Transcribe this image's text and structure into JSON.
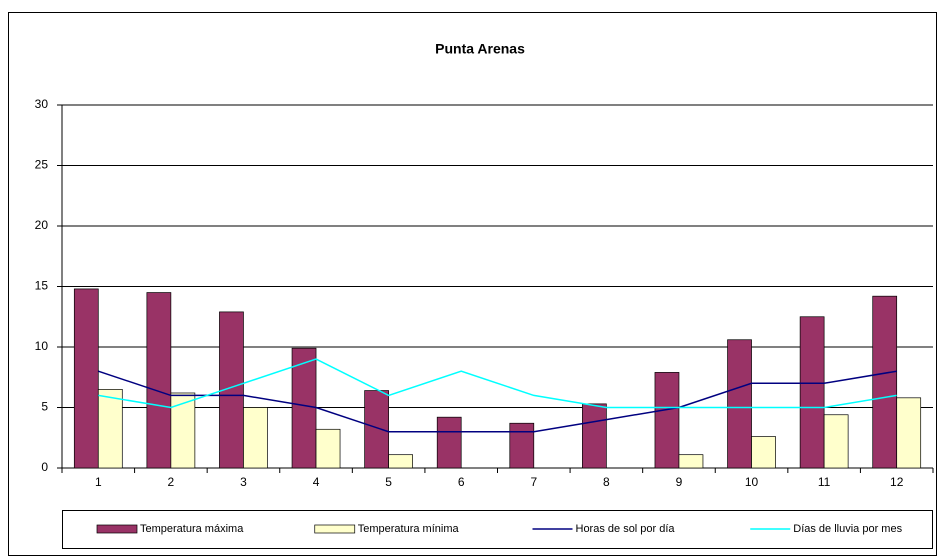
{
  "chart_data": {
    "type": "bar-line",
    "title": "Punta Arenas",
    "categories": [
      "1",
      "2",
      "3",
      "4",
      "5",
      "6",
      "7",
      "8",
      "9",
      "10",
      "11",
      "12"
    ],
    "series": [
      {
        "name": "Temperatura máxima",
        "kind": "bar",
        "color": "#993366",
        "values": [
          14.8,
          14.5,
          12.9,
          9.9,
          6.4,
          4.2,
          3.7,
          5.3,
          7.9,
          10.6,
          12.5,
          14.2
        ]
      },
      {
        "name": "Temperatura mínima",
        "kind": "bar",
        "color": "#ffffcc",
        "values": [
          6.5,
          6.2,
          5.0,
          3.2,
          1.1,
          0,
          0,
          0,
          1.1,
          2.6,
          4.4,
          5.8
        ]
      },
      {
        "name": "Horas de sol por día",
        "kind": "line",
        "color": "#000080",
        "values": [
          8,
          6,
          6,
          5,
          3,
          3,
          3,
          4,
          5,
          7,
          7,
          8
        ]
      },
      {
        "name": "Días de lluvia por mes",
        "kind": "line",
        "color": "#00ffff",
        "values": [
          6,
          5,
          7,
          9,
          6,
          8,
          6,
          5,
          5,
          5,
          5,
          6
        ]
      }
    ],
    "ylim": [
      0,
      30
    ],
    "yticks": [
      0,
      5,
      10,
      15,
      20,
      25,
      30
    ],
    "grid": true,
    "legend": "bottom"
  }
}
